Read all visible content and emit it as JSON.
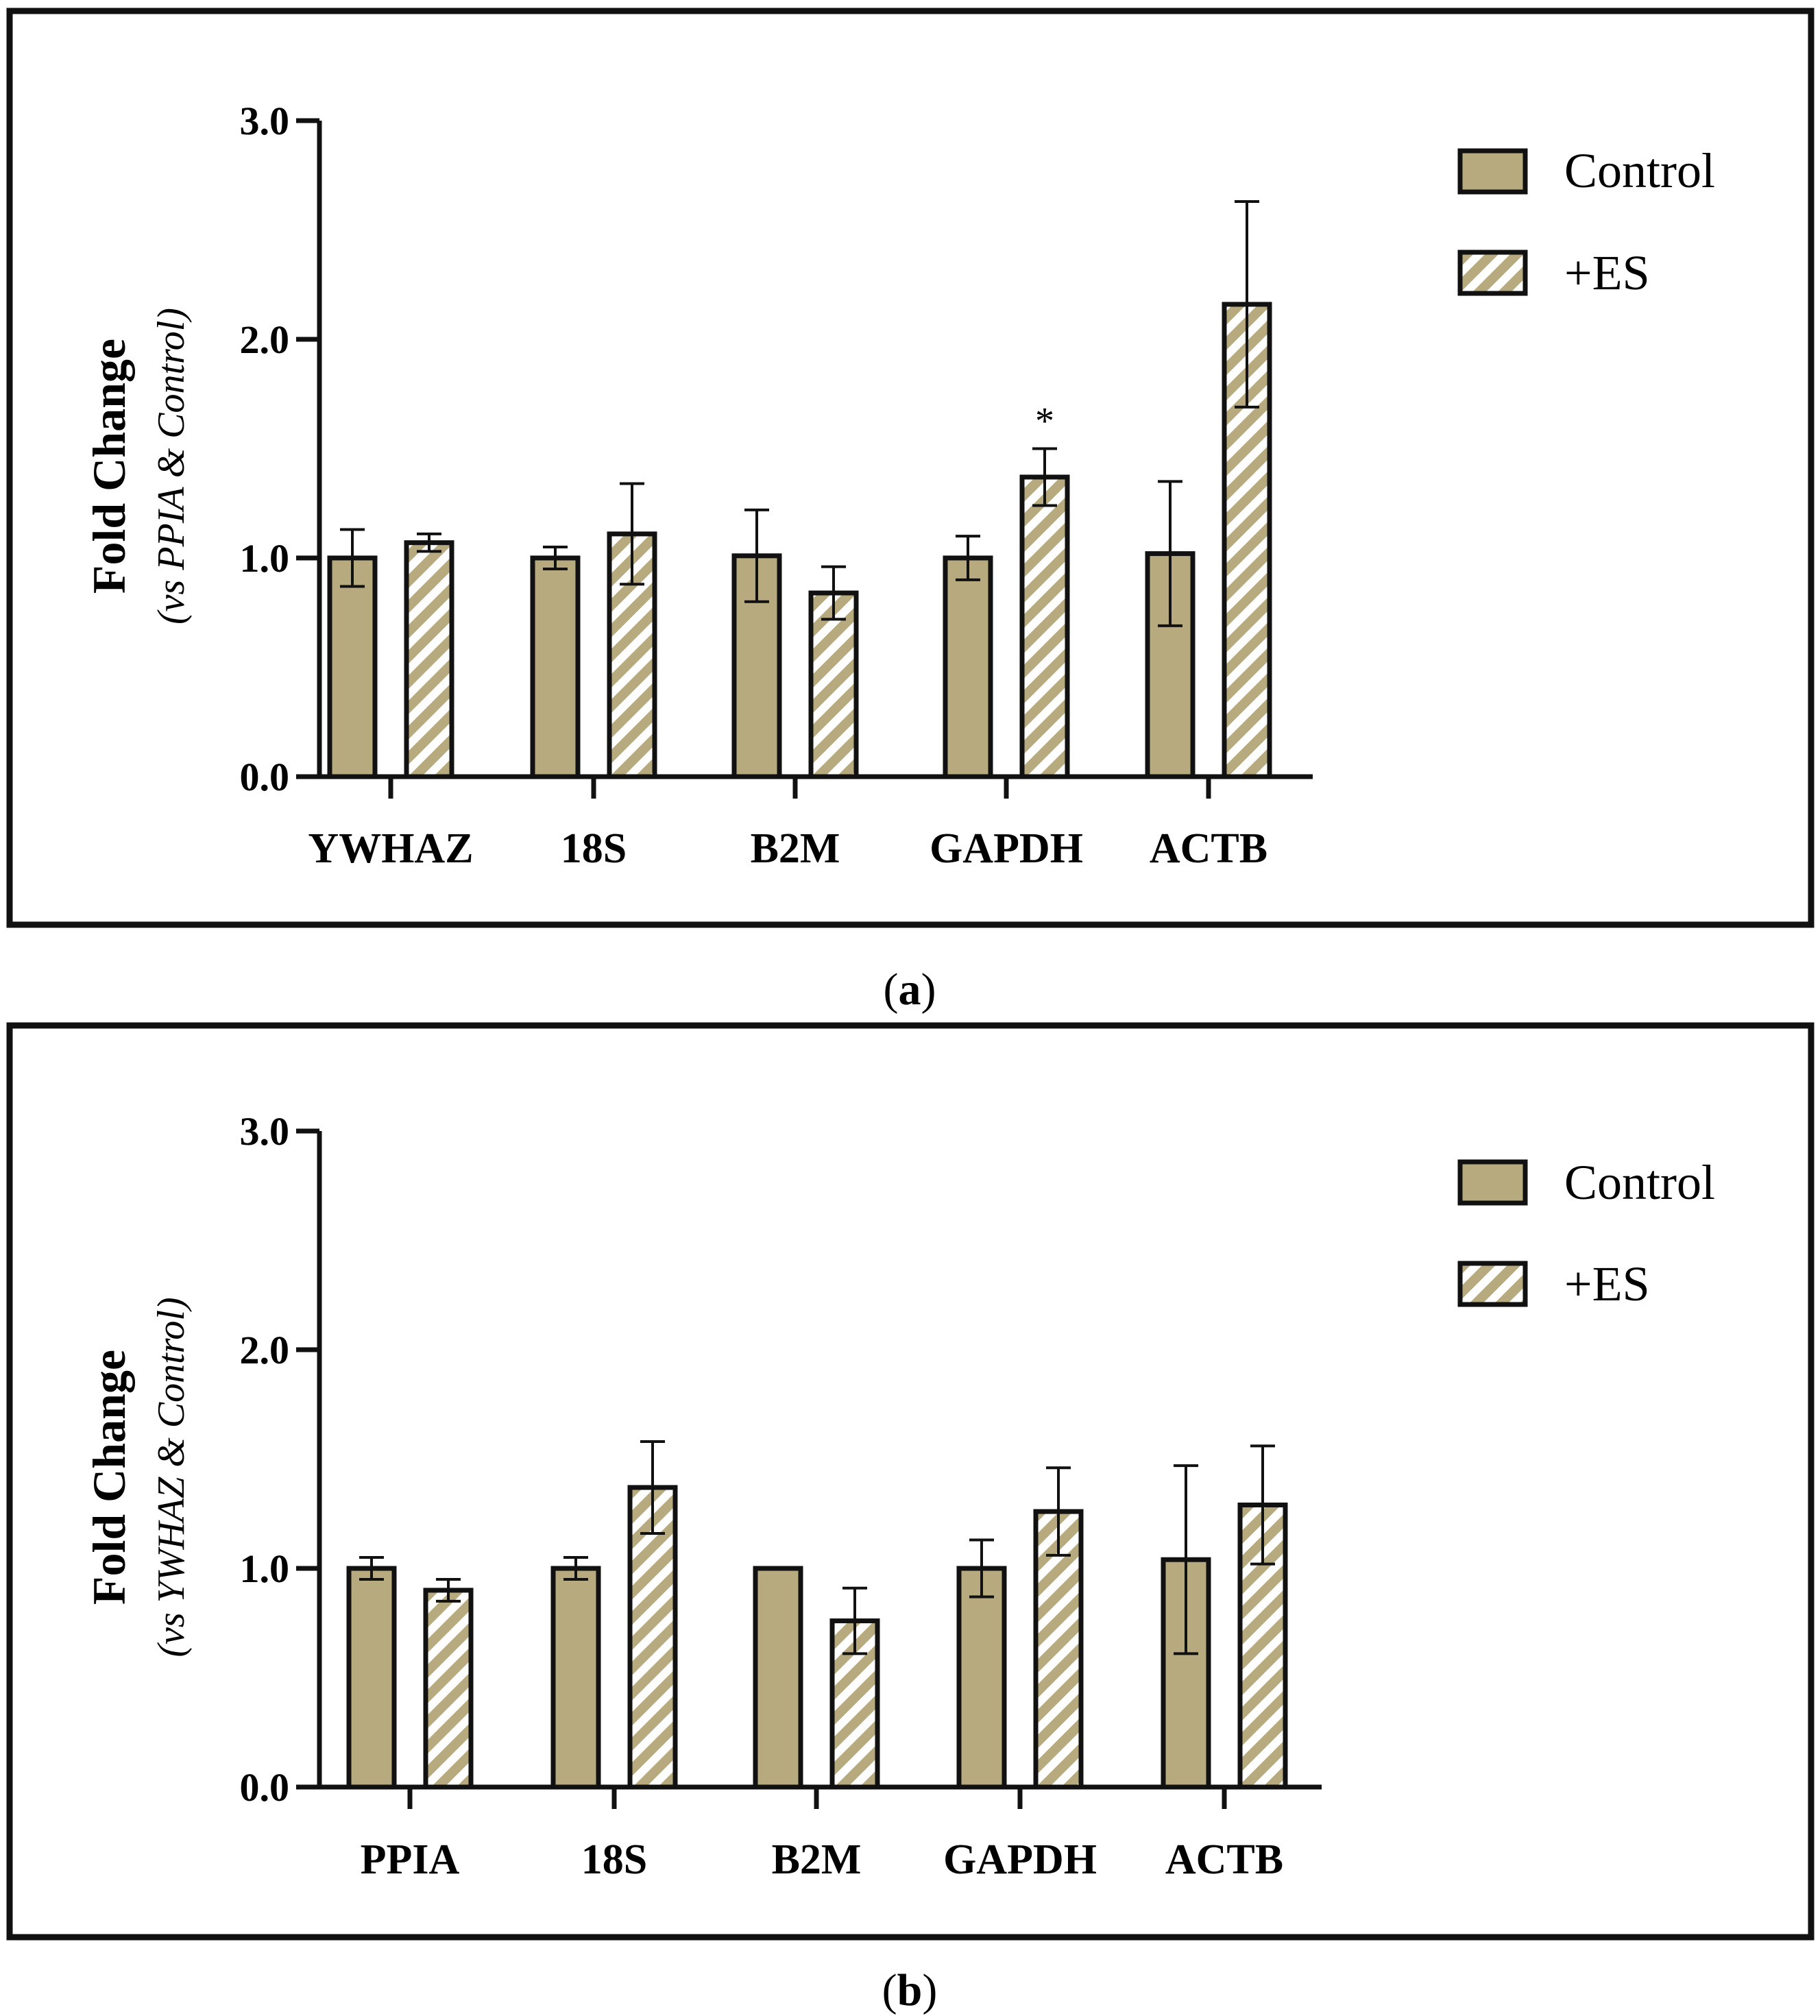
{
  "chart_data": [
    {
      "type": "bar",
      "panel_label": "a",
      "ylabel": "Fold Change",
      "ylabel_sub": "(vs  PPIA & Control)",
      "ylim": [
        0,
        3
      ],
      "yticks": [
        "0.0",
        "1.0",
        "2.0",
        "3.0"
      ],
      "categories": [
        "YWHAZ",
        "18S",
        "B2M",
        "GAPDH",
        "ACTB"
      ],
      "series": [
        {
          "name": "Control",
          "values": [
            1.0,
            1.0,
            1.01,
            1.0,
            1.02
          ],
          "errors": [
            0.13,
            0.05,
            0.21,
            0.1,
            0.33
          ]
        },
        {
          "name": "+ES",
          "values": [
            1.07,
            1.11,
            0.84,
            1.37,
            2.16
          ],
          "errors": [
            0.04,
            0.23,
            0.12,
            0.13,
            0.47
          ]
        }
      ],
      "annotations": [
        {
          "category": "GAPDH",
          "series": "+ES",
          "text": "*"
        }
      ],
      "legend": [
        "Control",
        "+ES"
      ]
    },
    {
      "type": "bar",
      "panel_label": "b",
      "ylabel": "Fold Change",
      "ylabel_sub": "(vs YWHAZ & Control)",
      "ylim": [
        0,
        3
      ],
      "yticks": [
        "0.0",
        "1.0",
        "2.0",
        "3.0"
      ],
      "categories": [
        "PPIA",
        "18S",
        "B2M",
        "GAPDH",
        "ACTB"
      ],
      "series": [
        {
          "name": "Control",
          "values": [
            1.0,
            1.0,
            1.0,
            1.0,
            1.04
          ],
          "errors": [
            0.05,
            0.05,
            0.0,
            0.13,
            0.43
          ]
        },
        {
          "name": "+ES",
          "values": [
            0.9,
            1.37,
            0.76,
            1.26,
            1.29
          ],
          "errors": [
            0.05,
            0.21,
            0.15,
            0.2,
            0.27
          ]
        }
      ],
      "annotations": [],
      "legend": [
        "Control",
        "+ES"
      ]
    }
  ],
  "colors": {
    "bar_fill": "#b7aa7f",
    "stroke": "#111111",
    "hatch_bg": "#ffffff"
  }
}
